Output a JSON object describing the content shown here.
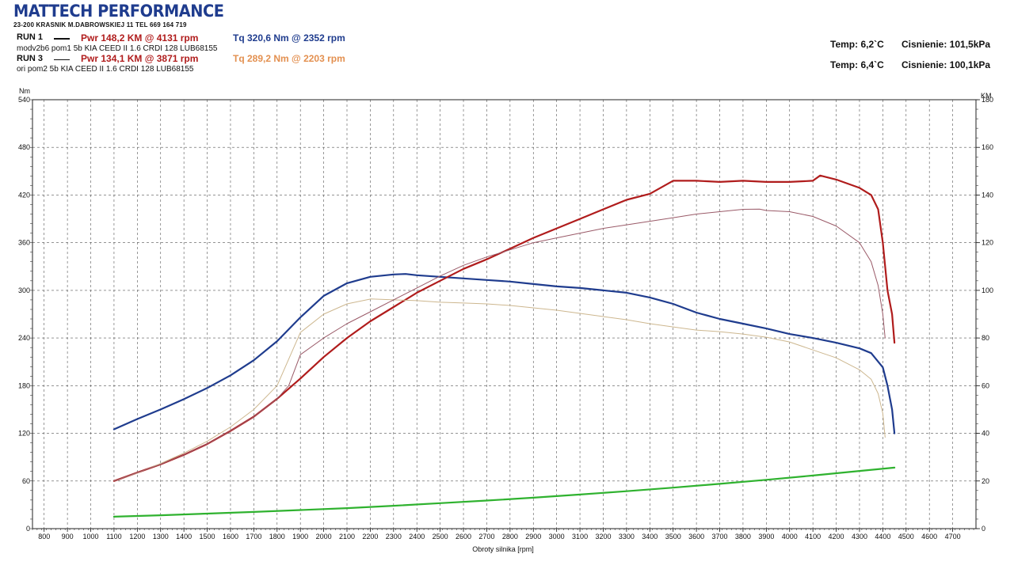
{
  "header": {
    "logo": "MATTECH PERFORMANCE",
    "address": "23-200 KRASNIK    M.DABROWSKIEJ 11    TEL 669 164 719"
  },
  "runs": [
    {
      "label": "RUN 1",
      "power": "Pwr  148,2 KM @ 4131 rpm",
      "torque": "Tq 320,6 Nm @ 2352 rpm",
      "description": "modv2b6 pom1 5b KIA CEED II 1.6 CRDI 128 LUB68155",
      "power_color": "#b01c1c",
      "torque_color": "#1f3c8e"
    },
    {
      "label": "RUN 3",
      "power": "Pwr  134,1 KM @ 3871 rpm",
      "torque": "Tq 289,2 Nm @ 2203 rpm",
      "description": "ori pom2 5b KIA CEED II 1.6 CRDI 128 LUB68155",
      "power_color": "#b01c1c",
      "torque_color": "#e39050"
    }
  ],
  "conditions": [
    {
      "temp": "Temp: 6,2`C",
      "pressure": "Cisnienie: 101,5kPa"
    },
    {
      "temp": "Temp: 6,4`C",
      "pressure": "Cisnienie: 100,1kPa"
    }
  ],
  "chart_data": {
    "type": "line",
    "xlabel": "Obroty silnika [rpm]",
    "ylabel_left": "Nm",
    "ylabel_right": "KM",
    "xlim": [
      750,
      4800
    ],
    "xticks": [
      800,
      900,
      1000,
      1100,
      1200,
      1300,
      1400,
      1500,
      1600,
      1700,
      1800,
      1900,
      2000,
      2100,
      2200,
      2300,
      2400,
      2500,
      2600,
      2700,
      2800,
      2900,
      3000,
      3100,
      3200,
      3300,
      3400,
      3500,
      3600,
      3700,
      3800,
      3900,
      4000,
      4100,
      4200,
      4300,
      4400,
      4500,
      4600,
      4700
    ],
    "ylim_left": [
      0,
      540
    ],
    "yticks_left": [
      0,
      60,
      120,
      180,
      240,
      300,
      360,
      420,
      480,
      540
    ],
    "ylim_right": [
      0,
      180
    ],
    "yticks_right": [
      0,
      20,
      40,
      60,
      80,
      100,
      120,
      140,
      160,
      180
    ],
    "grid": true,
    "series": [
      {
        "name": "RUN 1 Tq",
        "axis": "left",
        "color": "#1f3c8e",
        "width": 2.2,
        "x": [
          1100,
          1200,
          1300,
          1400,
          1500,
          1600,
          1700,
          1800,
          1900,
          2000,
          2100,
          2200,
          2300,
          2352,
          2400,
          2500,
          2600,
          2700,
          2800,
          2900,
          3000,
          3100,
          3200,
          3300,
          3400,
          3500,
          3600,
          3700,
          3800,
          3900,
          4000,
          4100,
          4200,
          4300,
          4350,
          4400,
          4420,
          4440,
          4450
        ],
        "y": [
          125,
          138,
          150,
          163,
          177,
          193,
          212,
          236,
          266,
          293,
          309,
          317,
          320,
          320.6,
          319,
          317,
          315,
          313,
          311,
          308,
          305,
          303,
          300,
          297,
          291,
          283,
          272,
          264,
          258,
          252,
          245,
          240,
          234,
          227,
          221,
          203,
          180,
          150,
          120
        ]
      },
      {
        "name": "RUN 1 Pwr",
        "axis": "right",
        "color": "#b01c1c",
        "width": 2.2,
        "x": [
          1100,
          1200,
          1300,
          1400,
          1500,
          1600,
          1700,
          1800,
          1900,
          2000,
          2100,
          2200,
          2300,
          2400,
          2500,
          2600,
          2700,
          2800,
          2900,
          3000,
          3100,
          3200,
          3300,
          3400,
          3500,
          3600,
          3700,
          3800,
          3900,
          4000,
          4100,
          4131,
          4200,
          4300,
          4350,
          4380,
          4400,
          4420,
          4440,
          4450
        ],
        "y": [
          20,
          23.5,
          27,
          31,
          35.5,
          41,
          47,
          54.5,
          63,
          72,
          80,
          87,
          93,
          99,
          104,
          109,
          113,
          117.5,
          122,
          126,
          130,
          134,
          138,
          140.5,
          146,
          146,
          145.5,
          146,
          145.5,
          145.5,
          146,
          148.2,
          146.5,
          143,
          140,
          134,
          120,
          100,
          90,
          78
        ]
      },
      {
        "name": "RUN 3 Tq",
        "axis": "left",
        "color": "#cdb78f",
        "width": 1,
        "x": [
          1100,
          1200,
          1300,
          1400,
          1500,
          1600,
          1700,
          1800,
          1900,
          2000,
          2100,
          2203,
          2300,
          2400,
          2500,
          2600,
          2700,
          2800,
          2900,
          3000,
          3100,
          3200,
          3300,
          3400,
          3500,
          3600,
          3700,
          3800,
          3900,
          4000,
          4100,
          4200,
          4300,
          4350,
          4380,
          4400,
          4410
        ],
        "y": [
          60,
          70,
          82,
          95,
          110,
          128,
          150,
          180,
          247,
          270,
          283,
          289.2,
          288,
          287,
          285,
          284,
          283,
          281,
          278,
          275,
          271,
          267,
          263,
          258,
          254,
          250,
          248,
          245,
          241,
          235,
          225,
          215,
          200,
          188,
          170,
          145,
          115
        ]
      },
      {
        "name": "RUN 3 Pwr",
        "axis": "right",
        "color": "#9a5a68",
        "width": 1,
        "x": [
          1100,
          1200,
          1300,
          1400,
          1500,
          1600,
          1700,
          1800,
          1850,
          1900,
          2000,
          2100,
          2200,
          2300,
          2400,
          2500,
          2600,
          2700,
          2800,
          2900,
          3000,
          3100,
          3200,
          3300,
          3400,
          3500,
          3600,
          3700,
          3800,
          3871,
          3900,
          4000,
          4100,
          4200,
          4300,
          4350,
          4380,
          4400,
          4410
        ],
        "y": [
          20,
          23.5,
          27,
          31,
          35.5,
          41,
          47,
          54.5,
          60,
          73,
          80,
          86,
          91,
          96,
          101,
          106,
          110.5,
          114,
          117,
          120,
          122,
          124,
          126,
          127.5,
          129,
          130.5,
          132,
          133,
          134,
          134.1,
          133.5,
          133,
          131,
          127,
          120,
          112,
          102,
          90,
          80
        ]
      },
      {
        "name": "Losses",
        "axis": "right",
        "color": "#2fb22f",
        "width": 2.2,
        "x": [
          1100,
          1300,
          1500,
          1700,
          1900,
          2100,
          2300,
          2500,
          2700,
          2900,
          3100,
          3300,
          3500,
          3700,
          3900,
          4100,
          4300,
          4450
        ],
        "y": [
          5,
          5.6,
          6.3,
          7.0,
          7.8,
          8.6,
          9.6,
          10.7,
          11.8,
          13.0,
          14.3,
          15.7,
          17.2,
          18.8,
          20.5,
          22.3,
          24.2,
          25.6
        ]
      }
    ]
  }
}
